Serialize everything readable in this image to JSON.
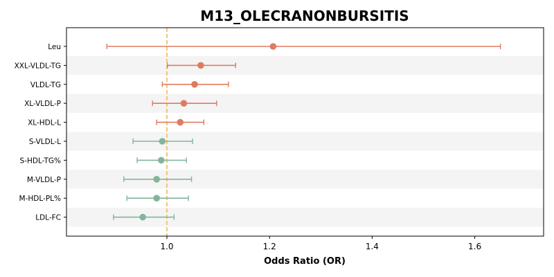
{
  "chart_data": {
    "type": "forest",
    "title": "M13_OLECRANONBURSITIS",
    "xlabel": "Odds Ratio (OR)",
    "xlim": [
      0.8,
      1.73
    ],
    "xticks": [
      1.0,
      1.2,
      1.4,
      1.6
    ],
    "xtick_labels": [
      "1.0",
      "1.2",
      "1.4",
      "1.6"
    ],
    "reference_line": 1.0,
    "reference_color": "#f5c77e",
    "stripe_color": "#f4f4f4",
    "rows": [
      {
        "label": "Leu",
        "or": 1.207,
        "lo": 0.883,
        "hi": 1.65,
        "group": "up"
      },
      {
        "label": "XXL-VLDL-TG",
        "or": 1.066,
        "lo": 1.001,
        "hi": 1.134,
        "group": "up"
      },
      {
        "label": "VLDL-TG",
        "or": 1.054,
        "lo": 0.991,
        "hi": 1.12,
        "group": "up"
      },
      {
        "label": "XL-VLDL-P",
        "or": 1.033,
        "lo": 0.972,
        "hi": 1.097,
        "group": "up"
      },
      {
        "label": "XL-HDL-L",
        "or": 1.026,
        "lo": 0.98,
        "hi": 1.072,
        "group": "up"
      },
      {
        "label": "S-VLDL-L",
        "or": 0.991,
        "lo": 0.934,
        "hi": 1.05,
        "group": "down"
      },
      {
        "label": "S-HDL-TG%",
        "or": 0.989,
        "lo": 0.942,
        "hi": 1.038,
        "group": "down"
      },
      {
        "label": "M-VLDL-P",
        "or": 0.98,
        "lo": 0.916,
        "hi": 1.048,
        "group": "down"
      },
      {
        "label": "M-HDL-PL%",
        "or": 0.98,
        "lo": 0.922,
        "hi": 1.042,
        "group": "down"
      },
      {
        "label": "LDL-FC",
        "or": 0.953,
        "lo": 0.896,
        "hi": 1.014,
        "group": "down"
      }
    ],
    "colors": {
      "up": "#e07b5f",
      "down": "#82b59b"
    },
    "grid": false
  }
}
